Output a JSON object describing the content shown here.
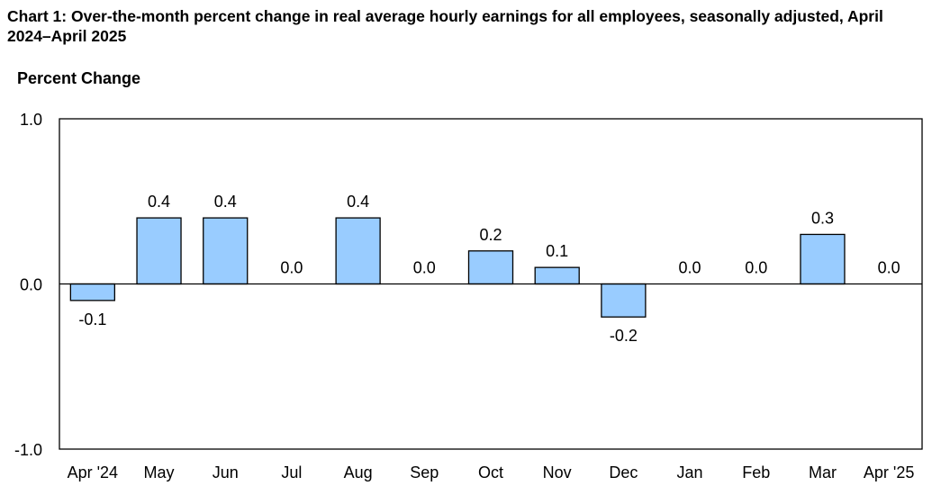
{
  "chart_data": {
    "type": "bar",
    "title": "Chart 1: Over-the-month percent change in real average hourly earnings for all employees, seasonally adjusted, April 2024–April 2025",
    "ylabel": "Percent Change",
    "xlabel": "",
    "categories": [
      "Apr '24",
      "May",
      "Jun",
      "Jul",
      "Aug",
      "Sep",
      "Oct",
      "Nov",
      "Dec",
      "Jan",
      "Feb",
      "Mar",
      "Apr '25"
    ],
    "values": [
      -0.1,
      0.4,
      0.4,
      0.0,
      0.4,
      0.0,
      0.2,
      0.1,
      -0.2,
      0.0,
      0.0,
      0.3,
      0.0
    ],
    "data_labels": [
      "-0.1",
      "0.4",
      "0.4",
      "0.0",
      "0.4",
      "0.0",
      "0.2",
      "0.1",
      "-0.2",
      "0.0",
      "0.0",
      "0.3",
      "0.0"
    ],
    "ylim": [
      -1.0,
      1.0
    ],
    "yticks": [
      1.0,
      0.0,
      -1.0
    ],
    "ytick_labels": [
      "1.0",
      "0.0",
      "-1.0"
    ],
    "grid": false,
    "bar_fill": "#99ccff",
    "bar_stroke": "#000000"
  }
}
